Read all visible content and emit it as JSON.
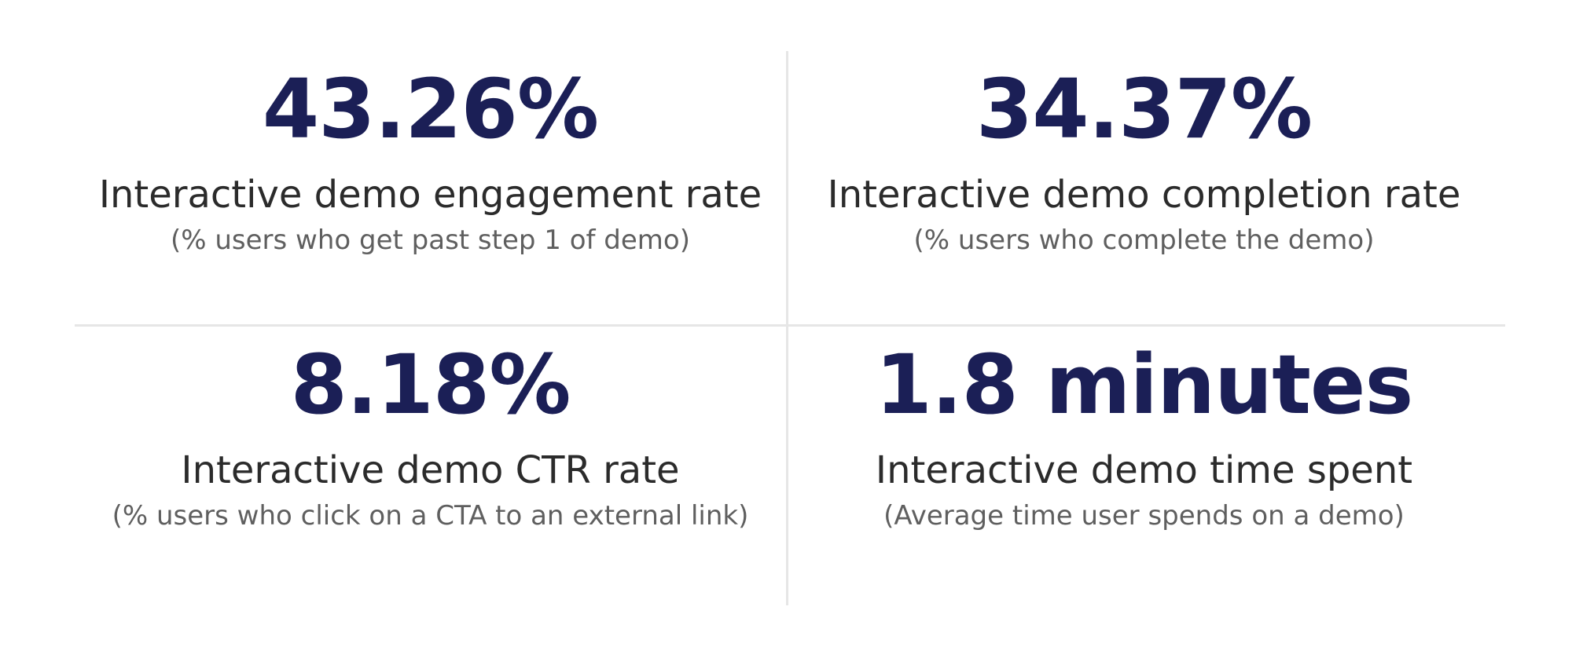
{
  "stats": [
    {
      "value": "43.26%",
      "title": "Interactive demo engagement rate",
      "subtitle": "(% users who get past step 1 of demo)"
    },
    {
      "value": "34.37%",
      "title": "Interactive demo completion rate",
      "subtitle": "(% users who complete the demo)"
    },
    {
      "value": "8.18%",
      "title": "Interactive demo CTR rate",
      "subtitle": "(% users who click on a CTA to an external link)"
    },
    {
      "value": "1.8 minutes",
      "title": "Interactive demo time spent",
      "subtitle": "(Average time user spends on a demo)"
    }
  ],
  "colors": {
    "value": "#1b1f56",
    "title": "#2b2b2b",
    "subtitle": "#5f5f5f",
    "divider": "#e6e6e6",
    "background": "#ffffff"
  }
}
